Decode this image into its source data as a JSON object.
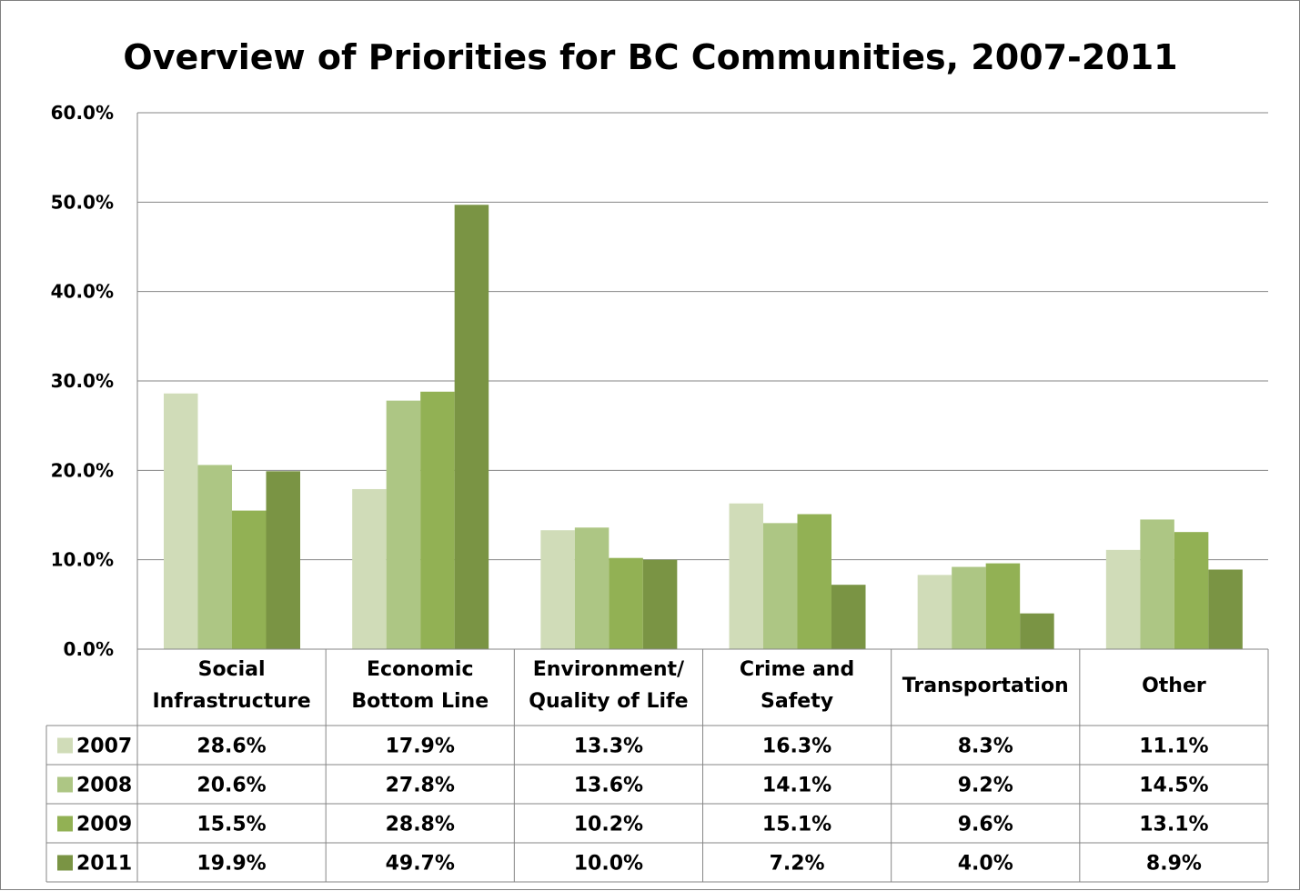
{
  "chart_data": {
    "type": "bar",
    "title": "Overview of Priorities for BC Communities, 2007-2011",
    "categories": [
      [
        "Social",
        "Infrastructure"
      ],
      [
        "Economic",
        "Bottom Line"
      ],
      [
        "Environment/",
        "Quality of Life"
      ],
      [
        "Crime and",
        "Safety"
      ],
      [
        "Transportation"
      ],
      [
        "Other"
      ]
    ],
    "series": [
      {
        "name": "2007",
        "color": "#d0dcb8",
        "values": [
          28.6,
          17.9,
          13.3,
          16.3,
          8.3,
          11.1
        ],
        "labels": [
          "28.6%",
          "17.9%",
          "13.3%",
          "16.3%",
          "8.3%",
          "11.1%"
        ]
      },
      {
        "name": "2008",
        "color": "#adc684",
        "values": [
          20.6,
          27.8,
          13.6,
          14.1,
          9.2,
          14.5
        ],
        "labels": [
          "20.6%",
          "27.8%",
          "13.6%",
          "14.1%",
          "9.2%",
          "14.5%"
        ]
      },
      {
        "name": "2009",
        "color": "#92b154",
        "values": [
          15.5,
          28.8,
          10.2,
          15.1,
          9.6,
          13.1
        ],
        "labels": [
          "15.5%",
          "28.8%",
          "10.2%",
          "15.1%",
          "9.6%",
          "13.1%"
        ]
      },
      {
        "name": "2011",
        "color": "#7a9444",
        "values": [
          19.9,
          49.7,
          10.0,
          7.2,
          4.0,
          8.9
        ],
        "labels": [
          "19.9%",
          "49.7%",
          "10.0%",
          "7.2%",
          "4.0%",
          "8.9%"
        ]
      }
    ],
    "yticks": [
      "0.0%",
      "10.0%",
      "20.0%",
      "30.0%",
      "40.0%",
      "50.0%",
      "60.0%"
    ],
    "ylim": [
      0,
      60
    ],
    "grid": true,
    "data_table": true,
    "xlabel": "",
    "ylabel": ""
  }
}
